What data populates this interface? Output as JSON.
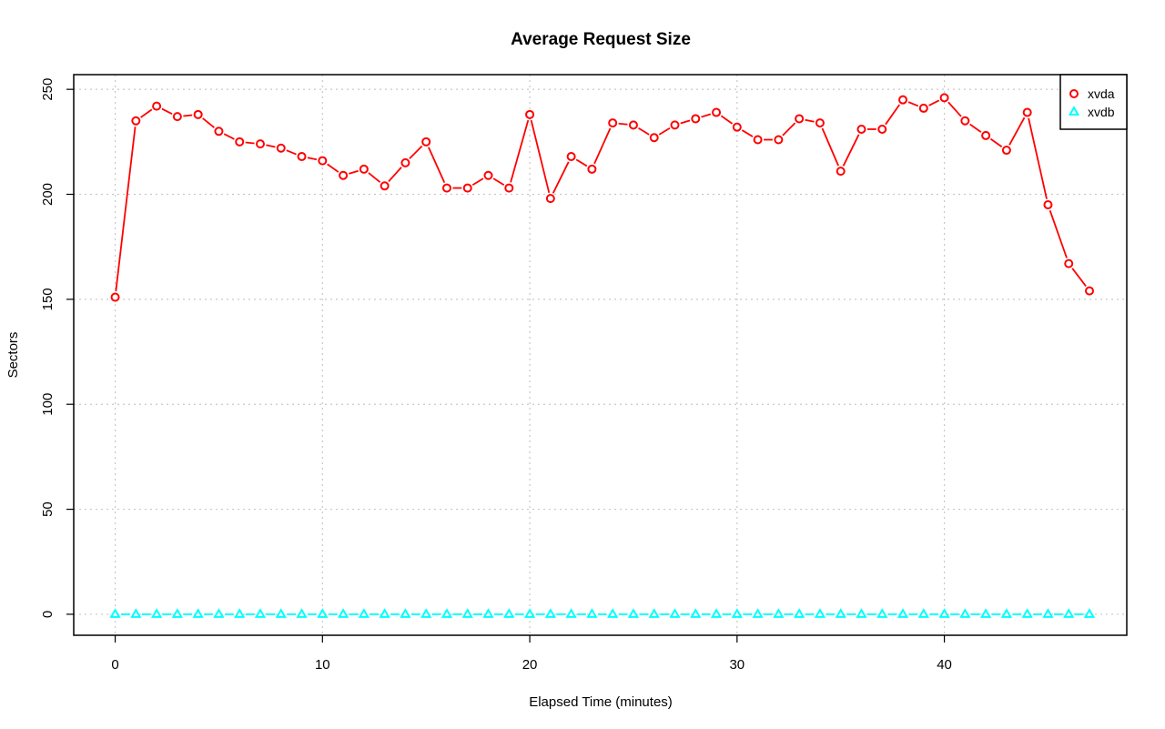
{
  "chart_data": {
    "type": "line",
    "title": "Average Request Size",
    "xlabel": "Elapsed Time (minutes)",
    "ylabel": "Sectors",
    "xlim": [
      -2,
      48.8
    ],
    "ylim": [
      -10,
      257
    ],
    "x_ticks": [
      0,
      10,
      20,
      30,
      40
    ],
    "y_ticks": [
      0,
      50,
      100,
      150,
      200,
      250
    ],
    "grid": true,
    "legend_position": "top-right",
    "x": [
      0,
      1,
      2,
      3,
      4,
      5,
      6,
      7,
      8,
      9,
      10,
      11,
      12,
      13,
      14,
      15,
      16,
      17,
      18,
      19,
      20,
      21,
      22,
      23,
      24,
      25,
      26,
      27,
      28,
      29,
      30,
      31,
      32,
      33,
      34,
      35,
      36,
      37,
      38,
      39,
      40,
      41,
      42,
      43,
      44,
      45,
      46,
      47
    ],
    "series": [
      {
        "name": "xvda",
        "color": "#ff0000",
        "marker": "circle",
        "values": [
          151,
          235,
          242,
          237,
          238,
          230,
          225,
          224,
          222,
          218,
          216,
          209,
          212,
          204,
          215,
          225,
          203,
          203,
          209,
          203,
          238,
          198,
          218,
          212,
          234,
          233,
          227,
          233,
          236,
          239,
          232,
          226,
          226,
          236,
          234,
          211,
          231,
          231,
          245,
          241,
          246,
          235,
          228,
          221,
          239,
          195,
          167,
          154
        ]
      },
      {
        "name": "xvdb",
        "color": "#00ffff",
        "marker": "triangle",
        "values": [
          0,
          0,
          0,
          0,
          0,
          0,
          0,
          0,
          0,
          0,
          0,
          0,
          0,
          0,
          0,
          0,
          0,
          0,
          0,
          0,
          0,
          0,
          0,
          0,
          0,
          0,
          0,
          0,
          0,
          0,
          0,
          0,
          0,
          0,
          0,
          0,
          0,
          0,
          0,
          0,
          0,
          0,
          0,
          0,
          0,
          0,
          0,
          0
        ]
      }
    ]
  }
}
